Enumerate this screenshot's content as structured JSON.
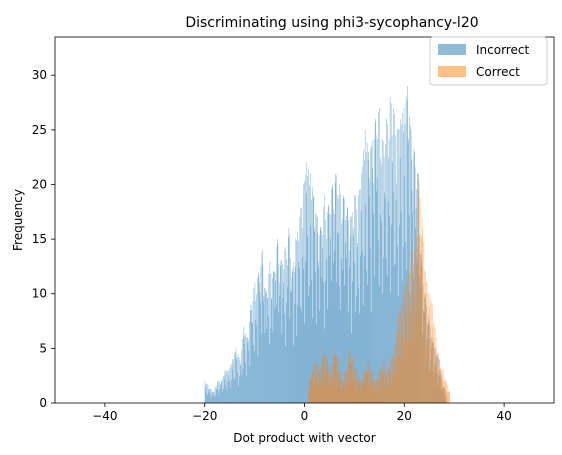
{
  "chart_data": {
    "type": "bar",
    "title": "Discriminating using phi3-sycophancy-l20",
    "xlabel": "Dot product with vector",
    "ylabel": "Frequency",
    "xlim": [
      -50,
      50
    ],
    "ylim": [
      0,
      33.5
    ],
    "xticks": [
      -40,
      -20,
      0,
      20,
      40
    ],
    "yticks": [
      0,
      5,
      10,
      15,
      20,
      25,
      30
    ],
    "legend_position": "upper-right",
    "bin_width": 0.1,
    "series": [
      {
        "name": "Incorrect",
        "color": "#1f77b4",
        "opacity": 0.5,
        "peaks": [
          {
            "x": -20.0,
            "y": 2
          },
          {
            "x": -18.3,
            "y": 1
          },
          {
            "x": -17.5,
            "y": 2
          },
          {
            "x": -16.7,
            "y": 2
          },
          {
            "x": -16.0,
            "y": 3
          },
          {
            "x": -15.2,
            "y": 3
          },
          {
            "x": -14.5,
            "y": 4
          },
          {
            "x": -13.8,
            "y": 5
          },
          {
            "x": -13.0,
            "y": 4
          },
          {
            "x": -12.2,
            "y": 7
          },
          {
            "x": -11.5,
            "y": 6
          },
          {
            "x": -10.8,
            "y": 9
          },
          {
            "x": -10.0,
            "y": 11
          },
          {
            "x": -9.2,
            "y": 12
          },
          {
            "x": -8.5,
            "y": 14
          },
          {
            "x": -7.8,
            "y": 10
          },
          {
            "x": -7.0,
            "y": 13
          },
          {
            "x": -6.2,
            "y": 12
          },
          {
            "x": -5.5,
            "y": 15
          },
          {
            "x": -4.8,
            "y": 13
          },
          {
            "x": -4.0,
            "y": 14
          },
          {
            "x": -3.2,
            "y": 16
          },
          {
            "x": -2.5,
            "y": 12
          },
          {
            "x": -1.8,
            "y": 15
          },
          {
            "x": -1.0,
            "y": 17
          },
          {
            "x": -0.3,
            "y": 20
          },
          {
            "x": 0.4,
            "y": 22
          },
          {
            "x": 1.1,
            "y": 21
          },
          {
            "x": 1.8,
            "y": 19
          },
          {
            "x": 2.5,
            "y": 17
          },
          {
            "x": 3.2,
            "y": 16
          },
          {
            "x": 4.0,
            "y": 19
          },
          {
            "x": 4.8,
            "y": 18
          },
          {
            "x": 5.5,
            "y": 20
          },
          {
            "x": 6.2,
            "y": 21
          },
          {
            "x": 7.0,
            "y": 20
          },
          {
            "x": 7.8,
            "y": 19
          },
          {
            "x": 8.5,
            "y": 18
          },
          {
            "x": 9.2,
            "y": 17
          },
          {
            "x": 10.0,
            "y": 19
          },
          {
            "x": 10.7,
            "y": 19
          },
          {
            "x": 11.4,
            "y": 21
          },
          {
            "x": 12.1,
            "y": 25
          },
          {
            "x": 12.8,
            "y": 23
          },
          {
            "x": 13.5,
            "y": 24
          },
          {
            "x": 14.2,
            "y": 26
          },
          {
            "x": 15.0,
            "y": 27
          },
          {
            "x": 15.7,
            "y": 24
          },
          {
            "x": 16.4,
            "y": 26
          },
          {
            "x": 17.1,
            "y": 28
          },
          {
            "x": 17.8,
            "y": 27
          },
          {
            "x": 18.5,
            "y": 25
          },
          {
            "x": 19.2,
            "y": 26
          },
          {
            "x": 19.9,
            "y": 27
          },
          {
            "x": 20.6,
            "y": 29
          },
          {
            "x": 21.3,
            "y": 25
          },
          {
            "x": 22.0,
            "y": 23
          },
          {
            "x": 22.7,
            "y": 21
          },
          {
            "x": 23.4,
            "y": 13
          },
          {
            "x": 24.1,
            "y": 10
          },
          {
            "x": 24.8,
            "y": 8
          },
          {
            "x": 25.5,
            "y": 6
          },
          {
            "x": 26.2,
            "y": 5
          },
          {
            "x": 26.9,
            "y": 4
          },
          {
            "x": 27.6,
            "y": 2
          },
          {
            "x": 28.3,
            "y": 1
          }
        ]
      },
      {
        "name": "Correct",
        "color": "#ff7f0e",
        "opacity": 0.5,
        "peaks": [
          {
            "x": 0.8,
            "y": 2
          },
          {
            "x": 1.5,
            "y": 3
          },
          {
            "x": 2.2,
            "y": 4
          },
          {
            "x": 3.0,
            "y": 3
          },
          {
            "x": 3.8,
            "y": 5
          },
          {
            "x": 4.5,
            "y": 4
          },
          {
            "x": 5.2,
            "y": 3
          },
          {
            "x": 6.0,
            "y": 5
          },
          {
            "x": 6.8,
            "y": 4
          },
          {
            "x": 7.5,
            "y": 2
          },
          {
            "x": 8.2,
            "y": 3
          },
          {
            "x": 9.0,
            "y": 5
          },
          {
            "x": 9.8,
            "y": 4
          },
          {
            "x": 10.5,
            "y": 3
          },
          {
            "x": 11.2,
            "y": 2
          },
          {
            "x": 12.0,
            "y": 3
          },
          {
            "x": 12.8,
            "y": 4
          },
          {
            "x": 13.5,
            "y": 3
          },
          {
            "x": 14.2,
            "y": 2
          },
          {
            "x": 15.0,
            "y": 3
          },
          {
            "x": 15.8,
            "y": 4
          },
          {
            "x": 16.5,
            "y": 3
          },
          {
            "x": 17.2,
            "y": 4
          },
          {
            "x": 18.0,
            "y": 5
          },
          {
            "x": 18.7,
            "y": 8
          },
          {
            "x": 19.4,
            "y": 9
          },
          {
            "x": 20.1,
            "y": 11
          },
          {
            "x": 20.8,
            "y": 12
          },
          {
            "x": 21.5,
            "y": 15
          },
          {
            "x": 22.2,
            "y": 14
          },
          {
            "x": 22.8,
            "y": 21
          },
          {
            "x": 23.5,
            "y": 17
          },
          {
            "x": 24.2,
            "y": 12
          },
          {
            "x": 24.9,
            "y": 10
          },
          {
            "x": 25.6,
            "y": 9
          },
          {
            "x": 26.3,
            "y": 6
          },
          {
            "x": 27.0,
            "y": 4
          },
          {
            "x": 27.7,
            "y": 3
          },
          {
            "x": 28.4,
            "y": 2
          },
          {
            "x": 29.0,
            "y": 1
          }
        ]
      }
    ]
  }
}
